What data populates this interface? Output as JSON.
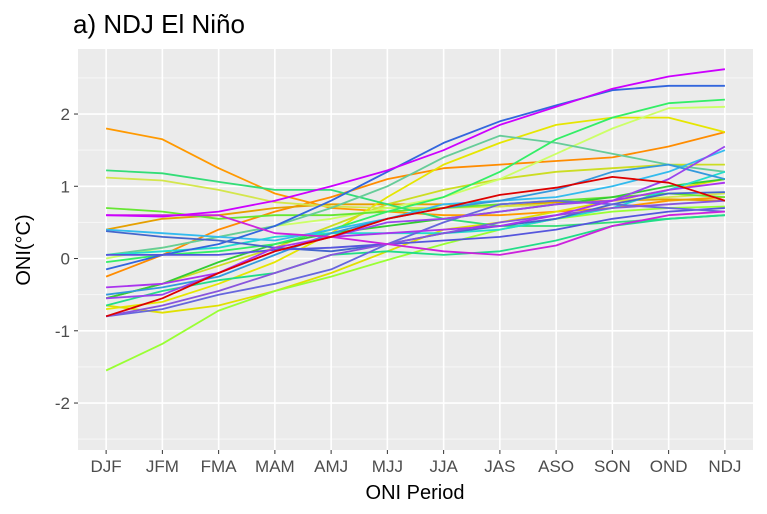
{
  "chart_data": {
    "type": "line",
    "title": "a) NDJ El Niño",
    "xlabel": "ONI Period",
    "ylabel": "ONI(°C)",
    "categories": [
      "DJF",
      "JFM",
      "FMA",
      "MAM",
      "AMJ",
      "MJJ",
      "JJA",
      "JAS",
      "ASO",
      "SON",
      "OND",
      "NDJ"
    ],
    "ylim": [
      -2.65,
      2.9
    ],
    "yticks": [
      -2,
      -1,
      0,
      1,
      2
    ],
    "ytick_labels": [
      "-2",
      "-1",
      "0",
      "1",
      "2"
    ],
    "grid": true,
    "legend": "none",
    "series": [
      {
        "color": "#FF9900",
        "values": [
          1.8,
          1.65,
          1.25,
          0.9,
          0.7,
          0.65,
          0.6,
          0.6,
          0.65,
          0.7,
          0.8,
          0.85
        ]
      },
      {
        "color": "#FF8C00",
        "values": [
          -0.25,
          0.05,
          0.4,
          0.65,
          0.85,
          1.1,
          1.25,
          1.3,
          1.35,
          1.4,
          1.55,
          1.75
        ]
      },
      {
        "color": "#E5A000",
        "values": [
          0.4,
          0.55,
          0.6,
          0.7,
          0.75,
          0.75,
          0.75,
          0.72,
          0.78,
          0.8,
          0.82,
          0.8
        ]
      },
      {
        "color": "#E6E600",
        "values": [
          -0.7,
          -0.6,
          -0.35,
          -0.05,
          0.35,
          0.85,
          1.3,
          1.6,
          1.85,
          1.95,
          1.95,
          1.75
        ]
      },
      {
        "color": "#CCDD22",
        "values": [
          -0.55,
          -0.35,
          -0.1,
          0.15,
          0.45,
          0.75,
          0.95,
          1.1,
          1.2,
          1.25,
          1.3,
          1.3
        ]
      },
      {
        "color": "#D4E64C",
        "values": [
          1.12,
          1.08,
          0.95,
          0.78,
          0.72,
          0.7,
          0.7,
          0.72,
          0.75,
          0.8,
          0.85,
          0.9
        ]
      },
      {
        "color": "#E0E000",
        "values": [
          -0.65,
          -0.75,
          -0.65,
          -0.45,
          -0.2,
          0.1,
          0.4,
          0.5,
          0.65,
          0.8,
          0.95,
          1.1
        ]
      },
      {
        "color": "#CCFF66",
        "values": [
          0.0,
          0.15,
          0.3,
          0.45,
          0.55,
          0.7,
          0.85,
          1.1,
          1.45,
          1.8,
          2.08,
          2.1
        ]
      },
      {
        "color": "#99FF33",
        "values": [
          -1.55,
          -1.18,
          -0.72,
          -0.45,
          -0.25,
          -0.02,
          0.2,
          0.4,
          0.55,
          0.65,
          0.7,
          0.72
        ]
      },
      {
        "color": "#66E633",
        "values": [
          0.7,
          0.65,
          0.55,
          0.6,
          0.6,
          0.65,
          0.7,
          0.75,
          0.8,
          0.85,
          0.9,
          0.85
        ]
      },
      {
        "color": "#33CC33",
        "values": [
          -0.55,
          -0.35,
          -0.05,
          0.2,
          0.35,
          0.45,
          0.55,
          0.65,
          0.75,
          0.85,
          1.0,
          1.1
        ]
      },
      {
        "color": "#33DD77",
        "values": [
          1.22,
          1.18,
          1.06,
          0.95,
          0.95,
          0.75,
          0.55,
          0.45,
          0.45,
          0.5,
          0.55,
          0.6
        ]
      },
      {
        "color": "#66CC99",
        "values": [
          0.05,
          0.15,
          0.3,
          0.45,
          0.7,
          1.0,
          1.4,
          1.7,
          1.6,
          1.45,
          1.3,
          1.2
        ]
      },
      {
        "color": "#22DD88",
        "values": [
          -0.65,
          -0.45,
          -0.3,
          -0.2,
          0.05,
          0.1,
          0.05,
          0.1,
          0.25,
          0.45,
          0.55,
          0.6
        ]
      },
      {
        "color": "#33EE66",
        "values": [
          -0.05,
          0.05,
          0.1,
          0.2,
          0.4,
          0.65,
          0.85,
          1.2,
          1.65,
          1.95,
          2.15,
          2.2
        ]
      },
      {
        "color": "#22DDCC",
        "values": [
          0.05,
          0.1,
          0.15,
          0.3,
          0.35,
          0.35,
          0.35,
          0.4,
          0.55,
          0.7,
          0.95,
          1.2
        ]
      },
      {
        "color": "#33BBEE",
        "values": [
          0.4,
          0.35,
          0.3,
          0.25,
          0.4,
          0.55,
          0.75,
          0.8,
          0.85,
          1.0,
          1.2,
          1.5
        ]
      },
      {
        "color": "#3399DD",
        "values": [
          -0.5,
          -0.4,
          -0.25,
          0.05,
          0.35,
          0.55,
          0.7,
          0.8,
          0.95,
          1.2,
          1.3,
          1.1
        ]
      },
      {
        "color": "#3366DD",
        "values": [
          -0.15,
          0.05,
          0.2,
          0.45,
          0.8,
          1.2,
          1.6,
          1.9,
          2.12,
          2.33,
          2.39,
          2.39
        ]
      },
      {
        "color": "#4466CC",
        "values": [
          0.38,
          0.3,
          0.25,
          0.15,
          0.1,
          0.2,
          0.35,
          0.45,
          0.55,
          0.75,
          0.9,
          0.92
        ]
      },
      {
        "color": "#5555DD",
        "values": [
          0.05,
          0.05,
          0.05,
          0.12,
          0.15,
          0.2,
          0.25,
          0.3,
          0.4,
          0.55,
          0.65,
          0.7
        ]
      },
      {
        "color": "#6666DD",
        "values": [
          -0.8,
          -0.7,
          -0.5,
          -0.35,
          -0.15,
          0.2,
          0.5,
          0.75,
          0.8,
          0.75,
          0.7,
          0.65
        ]
      },
      {
        "color": "#8855DD",
        "values": [
          -0.8,
          -0.65,
          -0.45,
          -0.2,
          0.05,
          0.2,
          0.35,
          0.5,
          0.6,
          0.7,
          0.75,
          0.8
        ]
      },
      {
        "color": "#9944EE",
        "values": [
          -0.55,
          -0.5,
          -0.2,
          0.1,
          0.3,
          0.5,
          0.55,
          0.65,
          0.75,
          0.8,
          1.1,
          1.55
        ]
      },
      {
        "color": "#AA33EE",
        "values": [
          -0.4,
          -0.35,
          -0.2,
          0.15,
          0.3,
          0.35,
          0.4,
          0.45,
          0.6,
          0.8,
          0.95,
          1.05
        ]
      },
      {
        "color": "#CC22DD",
        "values": [
          0.6,
          0.6,
          0.6,
          0.35,
          0.3,
          0.2,
          0.1,
          0.05,
          0.18,
          0.45,
          0.6,
          0.65
        ]
      },
      {
        "color": "#CC00FF",
        "values": [
          0.6,
          0.58,
          0.65,
          0.8,
          1.0,
          1.22,
          1.5,
          1.85,
          2.1,
          2.35,
          2.52,
          2.62
        ]
      },
      {
        "color": "#DD0000",
        "values": [
          -0.8,
          -0.55,
          -0.2,
          0.1,
          0.3,
          0.55,
          0.7,
          0.88,
          0.98,
          1.13,
          1.05,
          0.8
        ]
      }
    ]
  }
}
